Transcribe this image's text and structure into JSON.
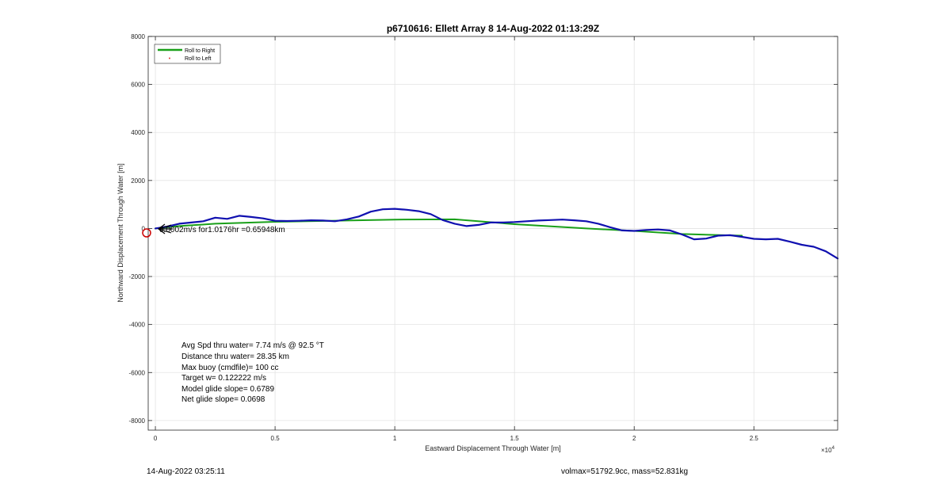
{
  "chart_data": {
    "type": "line",
    "title": "p6710616: Ellett Array 8 14-Aug-2022 01:13:29Z",
    "xlabel": "Eastward Displacement Through Water [m]",
    "ylabel": "Northward Displacement Through Water [m]",
    "x_exponent_label": "×10",
    "x_exponent_power": "4",
    "xlim": [
      -300,
      28500
    ],
    "ylim": [
      -8400,
      8000
    ],
    "xticks": [
      0,
      5000,
      10000,
      15000,
      20000,
      25000
    ],
    "xtick_labels": [
      "0",
      "0.5",
      "1",
      "1.5",
      "2",
      "2.5"
    ],
    "yticks": [
      8000,
      6000,
      4000,
      2000,
      0,
      -2000,
      -4000,
      -6000,
      -8000
    ],
    "ytick_labels": [
      "8000",
      "6000",
      "4000",
      "2000",
      "0",
      "-2000",
      "-4000",
      "-6000",
      "-8000"
    ],
    "grid": true,
    "legend_position": "top-left",
    "series": [
      {
        "name": "Roll to Right",
        "color": "#1aa01a",
        "style": "line",
        "x": [
          0,
          1000,
          2500,
          5000,
          8000,
          10000,
          12500,
          15000,
          18000,
          20000,
          22000,
          24500
        ],
        "y": [
          0,
          100,
          200,
          280,
          330,
          370,
          380,
          180,
          0,
          -100,
          -230,
          -300
        ]
      },
      {
        "name": "Roll to Left",
        "color": "#e03030",
        "style": "marker",
        "x": [],
        "y": []
      },
      {
        "name": "",
        "color": "#1010b0",
        "style": "line",
        "x": [
          0,
          500,
          1000,
          1500,
          2000,
          2500,
          3000,
          3500,
          4000,
          4500,
          5000,
          5500,
          6000,
          6500,
          7000,
          7500,
          8000,
          8500,
          9000,
          9500,
          10000,
          10500,
          11000,
          11500,
          12000,
          12500,
          13000,
          13500,
          14000,
          14500,
          15000,
          15500,
          16000,
          16500,
          17000,
          17500,
          18000,
          18500,
          19000,
          19500,
          20000,
          20500,
          21000,
          21500,
          22000,
          22500,
          23000,
          23500,
          24000,
          24500,
          25000,
          25500,
          26000,
          26500,
          27000,
          27500,
          28000,
          28500
        ],
        "y": [
          0,
          80,
          200,
          250,
          300,
          450,
          400,
          530,
          480,
          420,
          320,
          310,
          320,
          340,
          330,
          300,
          380,
          500,
          700,
          800,
          820,
          780,
          720,
          600,
          350,
          200,
          100,
          150,
          250,
          250,
          270,
          300,
          330,
          350,
          370,
          340,
          300,
          200,
          50,
          -80,
          -100,
          -60,
          -40,
          -80,
          -250,
          -450,
          -420,
          -300,
          -280,
          -350,
          -430,
          -450,
          -430,
          -550,
          -680,
          -760,
          -950,
          -1250
        ]
      }
    ],
    "start_marker_color": "#cc0000",
    "arrow_color": "#000000",
    "arrow_label": "0.0002m/s for1.0176hr =0.65948km",
    "annotations": [
      "Avg Spd thru water=  7.74 m/s @  92.5 °T",
      "Distance thru water= 28.35 km",
      "Max buoy (cmdfile)= 100 cc",
      "Target w= 0.122222 m/s",
      "Model glide slope= 0.6789",
      "Net glide slope= 0.0698"
    ]
  },
  "footer": {
    "left": "14-Aug-2022 03:25:11",
    "right": "volmax=51792.9cc, mass=52.831kg"
  }
}
